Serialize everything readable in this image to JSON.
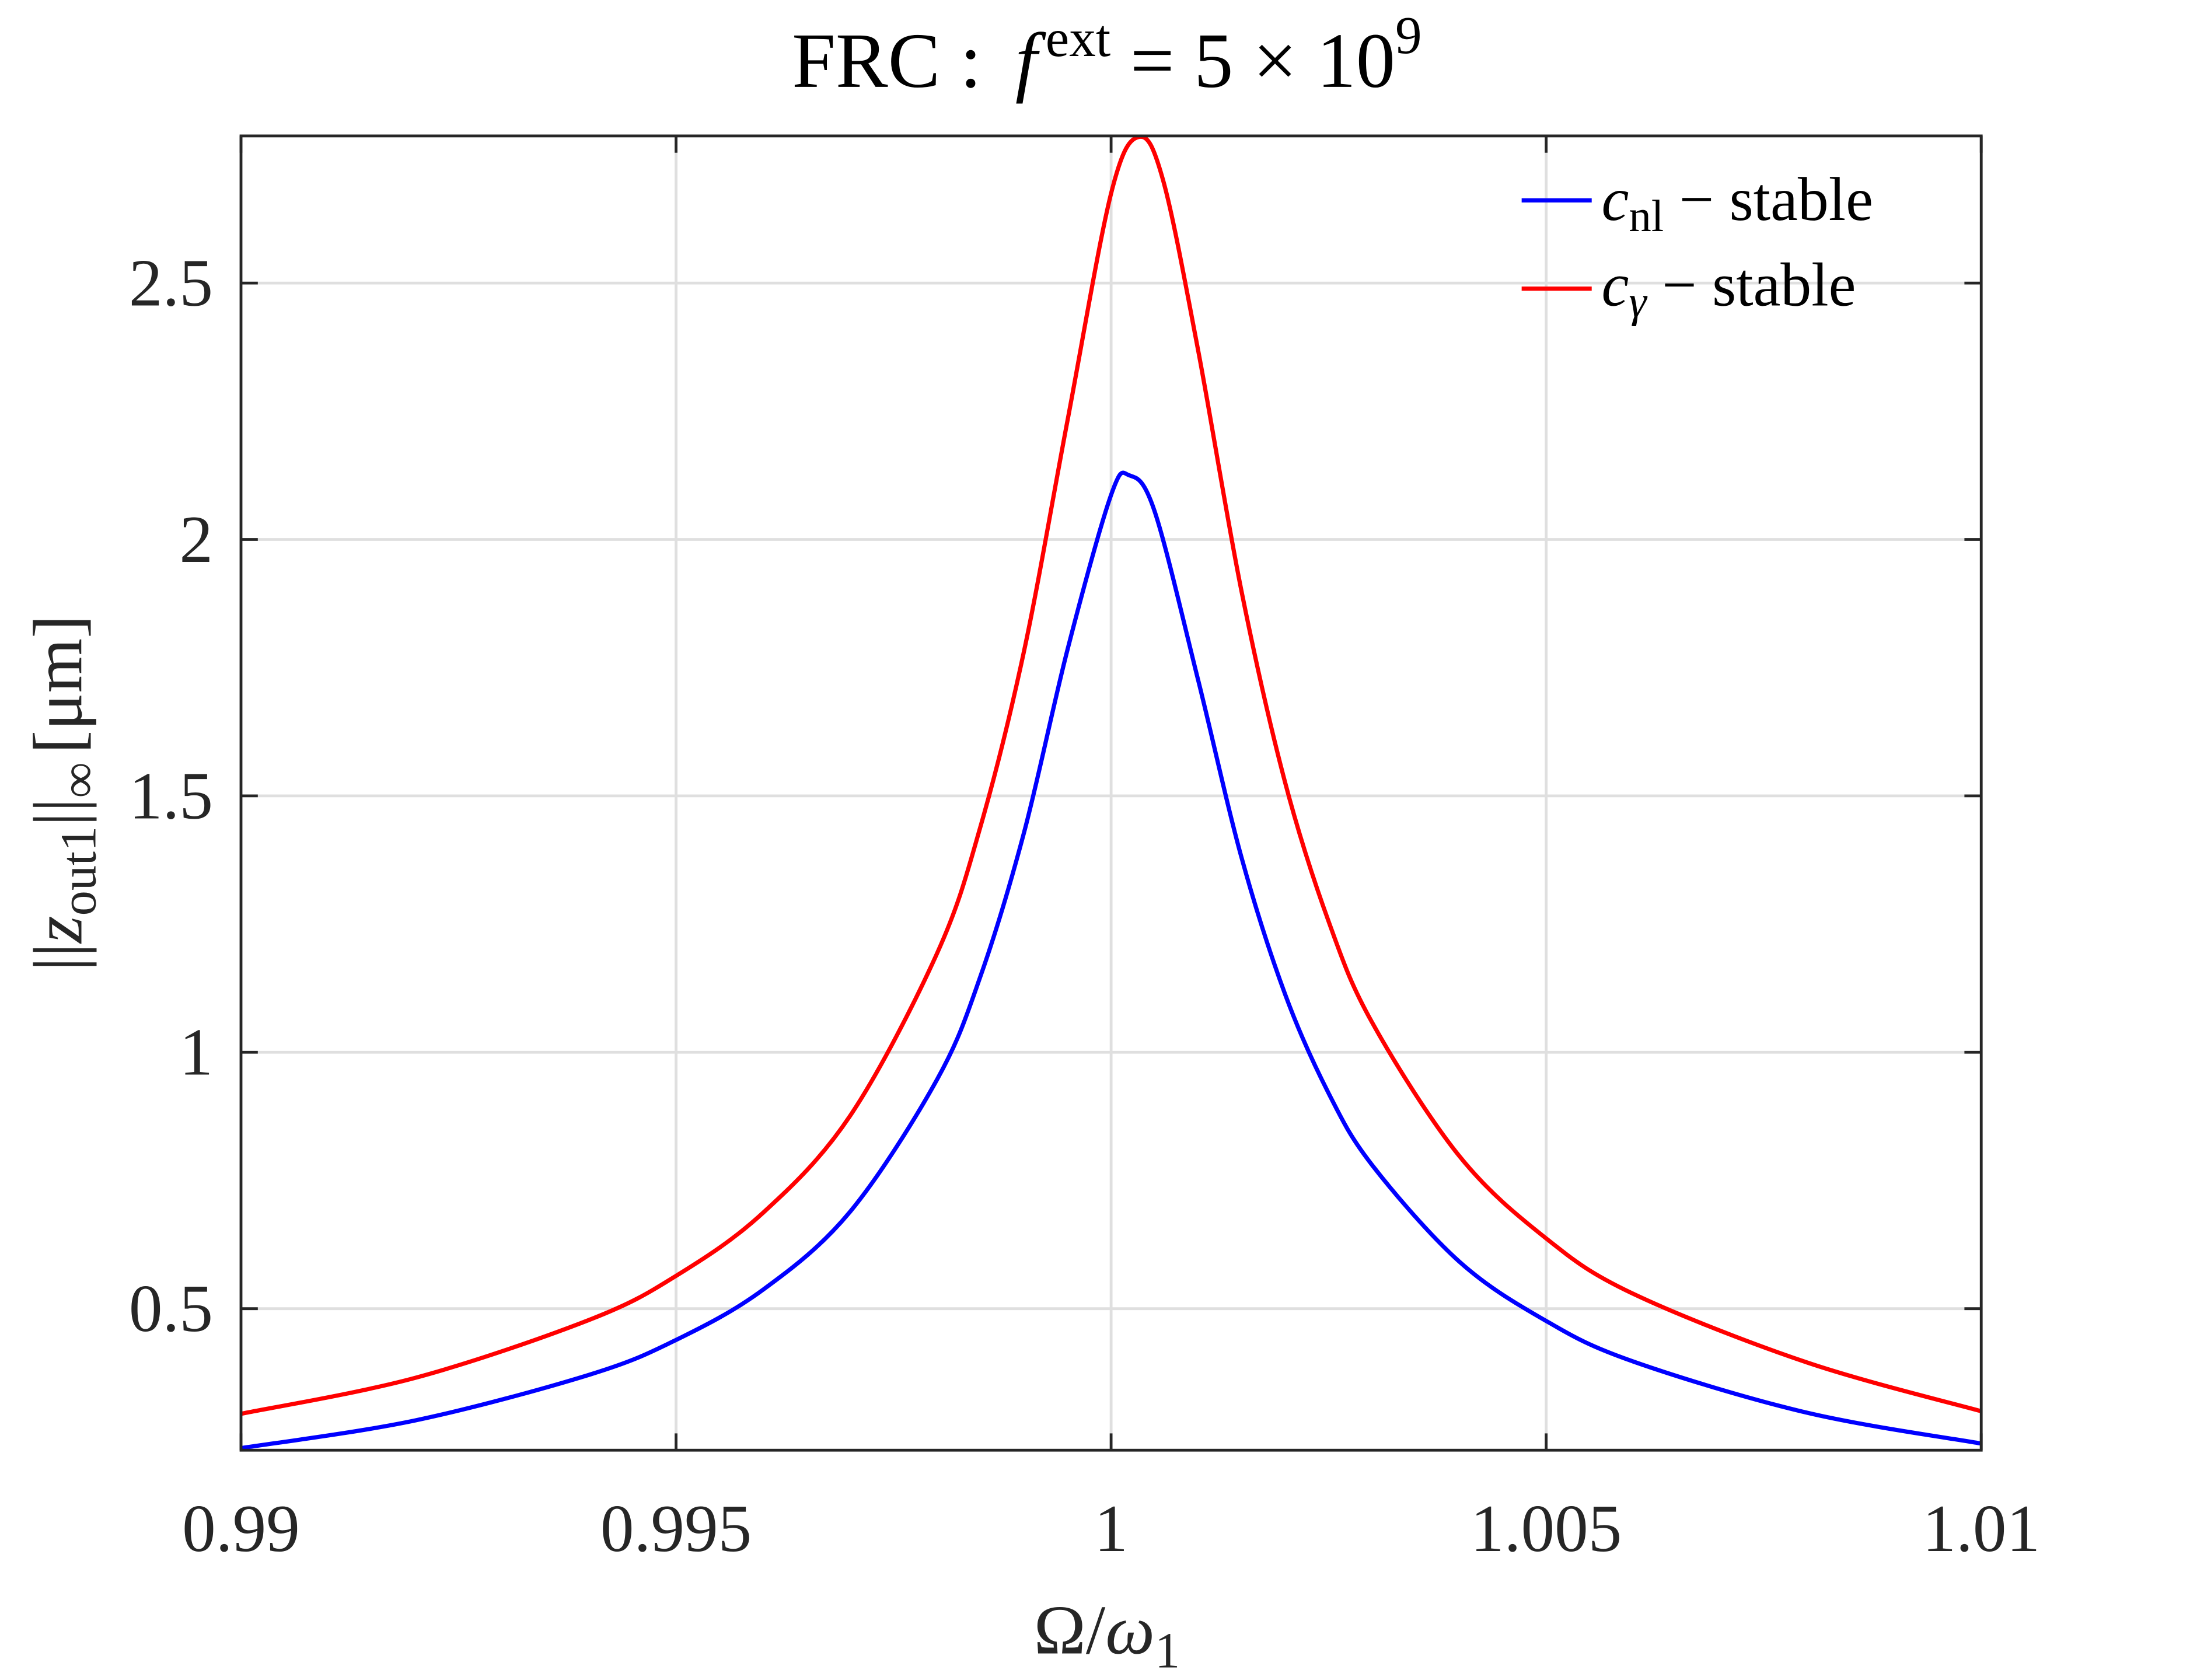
{
  "chart_data": {
    "type": "line",
    "title": {
      "prefix": "FRC :",
      "f": "f",
      "sup": "ext",
      "rest": "= 5 × 10",
      "exp": "9"
    },
    "xlabel": {
      "main": "Ω/",
      "omega": "ω",
      "sub": "1"
    },
    "ylabel": {
      "bars": "||",
      "z": "z",
      "sub": "out1",
      "bars2": "||",
      "inf": "∞",
      "unit": "[μm]"
    },
    "xlim": [
      0.99,
      1.01
    ],
    "ylim": [
      0.224,
      2.787
    ],
    "xticks": [
      0.99,
      0.995,
      1,
      1.005,
      1.01
    ],
    "xtick_labels": [
      "0.99",
      "0.995",
      "1",
      "1.005",
      "1.01"
    ],
    "yticks": [
      0.5,
      1,
      1.5,
      2,
      2.5
    ],
    "ytick_labels": [
      "0.5",
      "1",
      "1.5",
      "2",
      "2.5"
    ],
    "grid": true,
    "legend_position": "top-right",
    "series": [
      {
        "name": "c_nl - stable",
        "legend": {
          "c": "c",
          "sub": "nl",
          "rest": " − stable"
        },
        "color": "#0000ff",
        "x": [
          0.99,
          0.992,
          0.994,
          0.995,
          0.996,
          0.997,
          0.998,
          0.9985,
          0.999,
          0.9995,
          1.0,
          1.00021,
          1.0005,
          1.001,
          1.0015,
          1.002,
          1.0025,
          1.003,
          1.004,
          1.005,
          1.006,
          1.008,
          1.01
        ],
        "y": [
          0.228,
          0.282,
          0.371,
          0.439,
          0.537,
          0.689,
          0.947,
          1.149,
          1.429,
          1.786,
          2.087,
          2.125,
          2.055,
          1.726,
          1.379,
          1.113,
          0.92,
          0.78,
          0.592,
          0.476,
          0.397,
          0.297,
          0.237
        ]
      },
      {
        "name": "c_gamma - stable",
        "legend": {
          "c": "c",
          "sub": "γ",
          "rest": " − stable"
        },
        "color": "#ff0000",
        "x": [
          0.99,
          0.992,
          0.994,
          0.995,
          0.996,
          0.997,
          0.998,
          0.9985,
          0.999,
          0.9995,
          1.0,
          1.00032,
          1.0006,
          1.001,
          1.0015,
          1.002,
          1.0025,
          1.003,
          1.004,
          1.005,
          1.006,
          1.008,
          1.01
        ],
        "y": [
          0.295,
          0.365,
          0.478,
          0.564,
          0.687,
          0.876,
          1.193,
          1.441,
          1.783,
          2.233,
          2.675,
          2.785,
          2.699,
          2.369,
          1.898,
          1.526,
          1.255,
          1.058,
          0.798,
          0.637,
          0.529,
          0.395,
          0.3
        ]
      }
    ]
  }
}
